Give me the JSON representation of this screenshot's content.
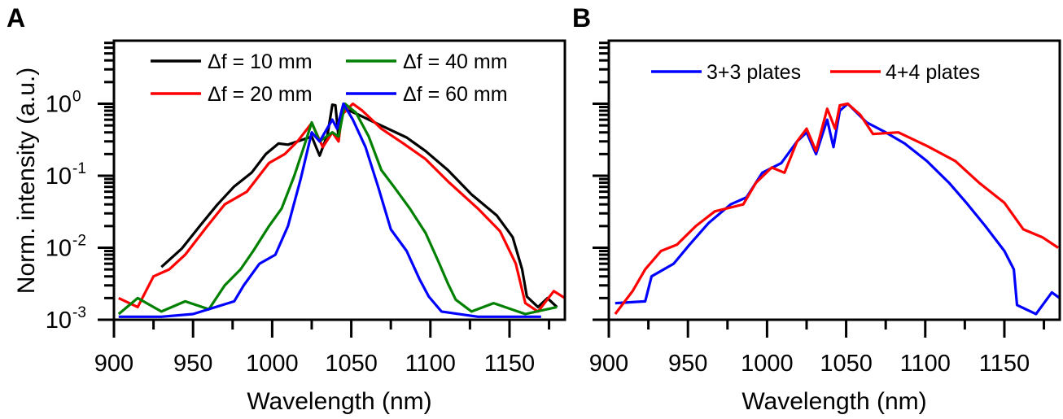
{
  "chart_data": [
    {
      "type": "line",
      "panel_label": "A",
      "xlabel": "Wavelength (nm)",
      "ylabel": "Norm. intensity (a.u.)",
      "xlim": [
        900,
        1185
      ],
      "ylim": [
        0.001,
        7.6
      ],
      "yscale": "log",
      "xticks": [
        "900",
        "950",
        "1000",
        "1050",
        "1100",
        "1150"
      ],
      "xtick_values": [
        900,
        950,
        1000,
        1050,
        1100,
        1150
      ],
      "yticks": [
        {
          "base": "10",
          "exp": "0",
          "value": 1
        },
        {
          "base": "10",
          "exp": "-1",
          "value": 0.1
        },
        {
          "base": "10",
          "exp": "-2",
          "value": 0.01
        },
        {
          "base": "10",
          "exp": "-3",
          "value": 0.001
        }
      ],
      "legend_placement": "top",
      "series": [
        {
          "name": "Δf = 10 mm",
          "color": "#000000",
          "points": [
            [
              930,
              0.0054
            ],
            [
              943,
              0.0098
            ],
            [
              955,
              0.021
            ],
            [
              965,
              0.039
            ],
            [
              976,
              0.071
            ],
            [
              987,
              0.11
            ],
            [
              996,
              0.2
            ],
            [
              1004,
              0.28
            ],
            [
              1010,
              0.27
            ],
            [
              1018,
              0.31
            ],
            [
              1025,
              0.35
            ],
            [
              1030,
              0.19
            ],
            [
              1035,
              0.37
            ],
            [
              1038,
              0.97
            ],
            [
              1040,
              0.95
            ],
            [
              1042,
              0.34
            ],
            [
              1045,
              0.87
            ],
            [
              1053,
              0.73
            ],
            [
              1067,
              0.52
            ],
            [
              1085,
              0.34
            ],
            [
              1097,
              0.22
            ],
            [
              1111,
              0.12
            ],
            [
              1126,
              0.055
            ],
            [
              1142,
              0.028
            ],
            [
              1152,
              0.014
            ],
            [
              1158,
              0.005
            ],
            [
              1161,
              0.0021
            ],
            [
              1168,
              0.0015
            ],
            [
              1174,
              0.002
            ],
            [
              1180,
              0.0015
            ]
          ]
        },
        {
          "name": "Δf = 20 mm",
          "color": "#ff0000",
          "points": [
            [
              903,
              0.002
            ],
            [
              915,
              0.0015
            ],
            [
              925,
              0.004
            ],
            [
              935,
              0.005
            ],
            [
              945,
              0.008
            ],
            [
              959,
              0.02
            ],
            [
              970,
              0.04
            ],
            [
              984,
              0.06
            ],
            [
              998,
              0.15
            ],
            [
              1008,
              0.2
            ],
            [
              1016,
              0.3
            ],
            [
              1025,
              0.54
            ],
            [
              1032,
              0.25
            ],
            [
              1038,
              0.4
            ],
            [
              1042,
              0.3
            ],
            [
              1044,
              0.7
            ],
            [
              1051,
              1.0
            ],
            [
              1057,
              0.8
            ],
            [
              1069,
              0.45
            ],
            [
              1083,
              0.28
            ],
            [
              1097,
              0.17
            ],
            [
              1112,
              0.08
            ],
            [
              1130,
              0.035
            ],
            [
              1144,
              0.017
            ],
            [
              1154,
              0.006
            ],
            [
              1160,
              0.0017
            ],
            [
              1168,
              0.0013
            ],
            [
              1178,
              0.0025
            ],
            [
              1185,
              0.002
            ]
          ]
        },
        {
          "name": "Δf = 40 mm",
          "color": "#008000",
          "points": [
            [
              903,
              0.0012
            ],
            [
              915,
              0.002
            ],
            [
              930,
              0.0013
            ],
            [
              945,
              0.0018
            ],
            [
              960,
              0.0014
            ],
            [
              970,
              0.003
            ],
            [
              980,
              0.005
            ],
            [
              988,
              0.009
            ],
            [
              998,
              0.02
            ],
            [
              1006,
              0.035
            ],
            [
              1014,
              0.1
            ],
            [
              1020,
              0.25
            ],
            [
              1025,
              0.55
            ],
            [
              1030,
              0.3
            ],
            [
              1038,
              0.4
            ],
            [
              1042,
              0.35
            ],
            [
              1046,
              1.0
            ],
            [
              1053,
              0.75
            ],
            [
              1061,
              0.35
            ],
            [
              1069,
              0.12
            ],
            [
              1077,
              0.07
            ],
            [
              1087,
              0.035
            ],
            [
              1097,
              0.016
            ],
            [
              1105,
              0.0065
            ],
            [
              1111,
              0.0032
            ],
            [
              1116,
              0.0019
            ],
            [
              1126,
              0.0013
            ],
            [
              1140,
              0.0017
            ],
            [
              1160,
              0.0012
            ],
            [
              1180,
              0.0015
            ]
          ]
        },
        {
          "name": "Δf = 60 mm",
          "color": "#0000ff",
          "points": [
            [
              903,
              0.0011
            ],
            [
              930,
              0.0011
            ],
            [
              950,
              0.0012
            ],
            [
              976,
              0.0018
            ],
            [
              982,
              0.003
            ],
            [
              992,
              0.006
            ],
            [
              1002,
              0.008
            ],
            [
              1010,
              0.02
            ],
            [
              1018,
              0.09
            ],
            [
              1025,
              0.4
            ],
            [
              1030,
              0.3
            ],
            [
              1038,
              0.6
            ],
            [
              1041,
              0.45
            ],
            [
              1045,
              1.0
            ],
            [
              1051,
              0.6
            ],
            [
              1059,
              0.25
            ],
            [
              1067,
              0.07
            ],
            [
              1075,
              0.018
            ],
            [
              1085,
              0.009
            ],
            [
              1093,
              0.0037
            ],
            [
              1099,
              0.0021
            ],
            [
              1107,
              0.0013
            ],
            [
              1130,
              0.0011
            ],
            [
              1170,
              0.0011
            ]
          ]
        }
      ]
    },
    {
      "type": "line",
      "panel_label": "B",
      "xlabel": "Wavelength (nm)",
      "ylabel": "",
      "xlim": [
        900,
        1185
      ],
      "ylim": [
        0.001,
        7.6
      ],
      "yscale": "log",
      "xticks": [
        "900",
        "950",
        "1000",
        "1050",
        "1100",
        "1150"
      ],
      "xtick_values": [
        900,
        950,
        1000,
        1050,
        1100,
        1150
      ],
      "yticks": [],
      "legend_placement": "top",
      "series": [
        {
          "name": "3+3 plates",
          "color": "#0000ff",
          "points": [
            [
              904,
              0.0017
            ],
            [
              923,
              0.0018
            ],
            [
              927,
              0.004
            ],
            [
              941,
              0.006
            ],
            [
              951,
              0.011
            ],
            [
              963,
              0.022
            ],
            [
              977,
              0.04
            ],
            [
              987,
              0.05
            ],
            [
              997,
              0.11
            ],
            [
              1009,
              0.15
            ],
            [
              1019,
              0.3
            ],
            [
              1025,
              0.4
            ],
            [
              1031,
              0.2
            ],
            [
              1038,
              0.6
            ],
            [
              1042,
              0.25
            ],
            [
              1046,
              0.8
            ],
            [
              1051,
              1.0
            ],
            [
              1063,
              0.55
            ],
            [
              1075,
              0.4
            ],
            [
              1087,
              0.28
            ],
            [
              1101,
              0.16
            ],
            [
              1115,
              0.08
            ],
            [
              1126,
              0.042
            ],
            [
              1138,
              0.02
            ],
            [
              1150,
              0.009
            ],
            [
              1156,
              0.005
            ],
            [
              1158,
              0.0016
            ],
            [
              1170,
              0.0012
            ],
            [
              1180,
              0.0024
            ],
            [
              1185,
              0.002
            ]
          ]
        },
        {
          "name": "4+4 plates",
          "color": "#ff0000",
          "points": [
            [
              904,
              0.0012
            ],
            [
              915,
              0.0025
            ],
            [
              923,
              0.005
            ],
            [
              933,
              0.009
            ],
            [
              943,
              0.011
            ],
            [
              955,
              0.02
            ],
            [
              967,
              0.032
            ],
            [
              985,
              0.04
            ],
            [
              993,
              0.08
            ],
            [
              1003,
              0.13
            ],
            [
              1011,
              0.11
            ],
            [
              1019,
              0.3
            ],
            [
              1025,
              0.45
            ],
            [
              1031,
              0.22
            ],
            [
              1038,
              0.85
            ],
            [
              1043,
              0.45
            ],
            [
              1046,
              0.95
            ],
            [
              1051,
              1.0
            ],
            [
              1059,
              0.7
            ],
            [
              1067,
              0.38
            ],
            [
              1083,
              0.4
            ],
            [
              1101,
              0.26
            ],
            [
              1119,
              0.16
            ],
            [
              1134,
              0.08
            ],
            [
              1150,
              0.042
            ],
            [
              1162,
              0.018
            ],
            [
              1174,
              0.014
            ],
            [
              1184,
              0.01
            ]
          ]
        }
      ]
    }
  ]
}
